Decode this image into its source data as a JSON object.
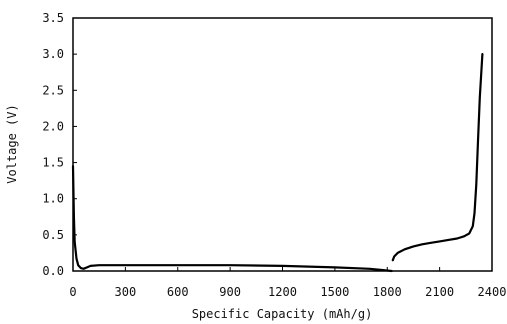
{
  "chart_data": {
    "type": "line",
    "title": "",
    "xlabel": "Specific Capacity (mAh/g)",
    "ylabel": "Voltage (V)",
    "xlim": [
      0,
      2400
    ],
    "ylim": [
      0,
      3.5
    ],
    "x_ticks": [
      0,
      300,
      600,
      900,
      1200,
      1500,
      1800,
      2100,
      2400
    ],
    "y_ticks": [
      0.0,
      0.5,
      1.0,
      1.5,
      2.0,
      2.5,
      3.0,
      3.5
    ],
    "x_tick_labels": [
      "0",
      "300",
      "600",
      "900",
      "1200",
      "1500",
      "1800",
      "2100",
      "2400"
    ],
    "y_tick_labels": [
      "0.0",
      "0.5",
      "1.0",
      "1.5",
      "2.0",
      "2.5",
      "3.0",
      "3.5"
    ],
    "grid": false,
    "legend": "none",
    "line_color": "#000000",
    "series": [
      {
        "segment": "discharge",
        "x": [
          0,
          5,
          10,
          20,
          30,
          45,
          60,
          80,
          100,
          150,
          300,
          600,
          900,
          1200,
          1500,
          1700,
          1790,
          1825
        ],
        "y": [
          1.45,
          0.75,
          0.4,
          0.17,
          0.08,
          0.04,
          0.03,
          0.05,
          0.07,
          0.08,
          0.08,
          0.08,
          0.08,
          0.07,
          0.05,
          0.03,
          0.01,
          0.0
        ]
      },
      {
        "segment": "charge",
        "x": [
          1832,
          1840,
          1860,
          1900,
          1950,
          2000,
          2050,
          2100,
          2150,
          2200,
          2240,
          2270,
          2290,
          2300,
          2310,
          2320,
          2330,
          2345
        ],
        "y": [
          0.15,
          0.2,
          0.25,
          0.3,
          0.34,
          0.37,
          0.39,
          0.41,
          0.43,
          0.45,
          0.48,
          0.52,
          0.62,
          0.8,
          1.2,
          1.8,
          2.4,
          3.0
        ]
      }
    ]
  }
}
